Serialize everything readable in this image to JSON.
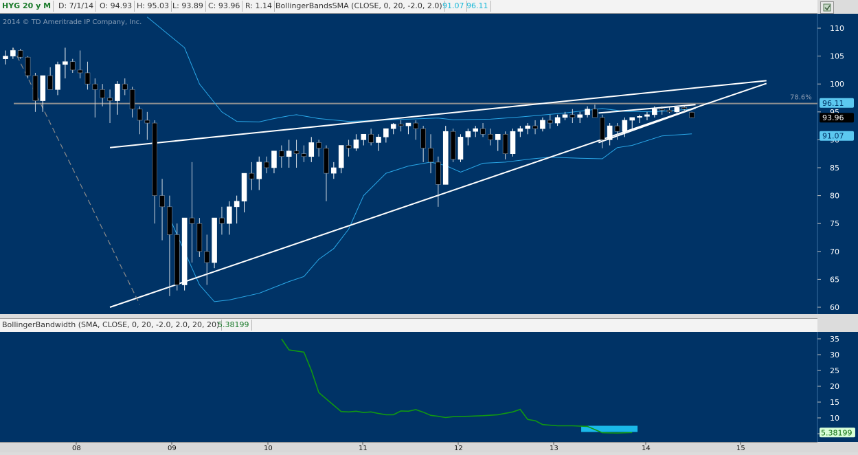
{
  "header": {
    "symbol": "HYG 20 y M",
    "date": "D: 7/1/14",
    "open": "O: 94.93",
    "high": "H: 95.03",
    "low": "L: 93.89",
    "close": "C: 93.96",
    "range": "R: 1.14",
    "study": "BollingerBandsSMA (CLOSE, 0, 20, -2.0, 2.0)",
    "lower_band": "91.07",
    "upper_band": "96.11"
  },
  "copyright": "2014 © TD Ameritrade IP Company, Inc.",
  "subheader": {
    "study": "BollingerBandwidth (SMA, CLOSE, 0, 20, -2.0, 2.0, 20, 20)",
    "value": "5.38199"
  },
  "colors": {
    "background": "#003366",
    "candle_up": "#ffffff",
    "candle_down": "#000000",
    "bands": "#2aa8e8",
    "bandwidth": "#119911",
    "fib": "#909090",
    "trendline": "#ffffff"
  },
  "chart_data": [
    {
      "type": "candlestick",
      "x_axis_labels": [
        "08",
        "09",
        "10",
        "11",
        "12",
        "13",
        "14",
        "15"
      ],
      "ylim": [
        58,
        113
      ],
      "y_ticks": [
        110,
        105,
        100,
        95,
        90,
        85,
        80,
        75,
        70,
        65,
        60
      ],
      "fib_label": "78.6%",
      "fib_level": 96.5,
      "last_price": "93.96",
      "band_upper_label": "96.11",
      "band_lower_label": "91.07",
      "candles": [
        [
          104.5,
          106,
          103.5,
          105
        ],
        [
          105,
          106.5,
          104.5,
          106
        ],
        [
          106,
          106.3,
          104.5,
          104.8
        ],
        [
          104.8,
          105,
          101,
          101.5
        ],
        [
          101.5,
          102,
          95,
          97
        ],
        [
          97,
          101.5,
          95,
          101.5
        ],
        [
          101.5,
          103,
          99,
          99
        ],
        [
          99,
          104,
          98,
          103.5
        ],
        [
          103.5,
          106.5,
          101,
          104
        ],
        [
          104,
          104.5,
          102,
          102.5
        ],
        [
          102.5,
          106,
          101,
          102
        ],
        [
          102,
          104,
          99,
          100
        ],
        [
          100,
          101,
          94,
          99
        ],
        [
          99,
          100,
          96,
          97.5
        ],
        [
          97.5,
          99,
          93,
          97
        ],
        [
          97,
          100.5,
          94.5,
          100
        ],
        [
          100,
          101,
          98,
          99
        ],
        [
          99,
          99.5,
          94,
          95.5
        ],
        [
          95.5,
          96,
          91,
          93.5
        ],
        [
          93.5,
          95,
          90,
          93
        ],
        [
          93,
          93.5,
          75,
          80
        ],
        [
          80,
          83,
          72,
          78
        ],
        [
          78,
          80,
          62,
          73
        ],
        [
          73,
          75,
          63,
          64
        ],
        [
          64,
          76,
          63,
          76
        ],
        [
          76,
          86,
          68,
          75
        ],
        [
          75,
          76,
          69,
          70
        ],
        [
          70,
          73,
          64,
          68
        ],
        [
          68,
          76,
          67,
          76
        ],
        [
          76,
          78,
          73,
          75
        ],
        [
          75,
          79,
          73,
          78
        ],
        [
          78,
          80,
          75,
          79
        ],
        [
          79,
          84,
          77,
          84
        ],
        [
          84,
          86,
          81,
          83
        ],
        [
          83,
          87,
          81,
          86
        ],
        [
          86,
          87,
          84,
          85
        ],
        [
          85,
          88,
          84,
          88
        ],
        [
          88,
          89,
          85,
          87
        ],
        [
          87,
          90,
          85,
          88
        ],
        [
          88,
          90,
          85,
          87.5
        ],
        [
          87.5,
          89,
          86,
          87
        ],
        [
          87,
          90.5,
          86,
          89.5
        ],
        [
          89.5,
          90,
          87,
          88.5
        ],
        [
          88.5,
          89,
          79,
          84
        ],
        [
          84,
          86,
          83,
          85
        ],
        [
          85,
          89,
          84,
          89
        ],
        [
          89,
          90,
          87,
          88.5
        ],
        [
          88.5,
          91,
          88,
          90
        ],
        [
          90,
          91,
          89,
          91
        ],
        [
          91,
          92,
          89,
          89.5
        ],
        [
          89.5,
          91,
          88,
          90.5
        ],
        [
          90.5,
          92,
          89.5,
          92
        ],
        [
          92,
          93,
          91,
          92.8
        ],
        [
          92.8,
          93.5,
          91.5,
          92.5
        ],
        [
          92.5,
          93,
          91,
          93
        ],
        [
          93,
          93.5,
          90,
          92
        ],
        [
          92,
          92.5,
          86,
          88.5
        ],
        [
          88.5,
          91,
          84,
          86
        ],
        [
          86,
          87,
          78,
          82
        ],
        [
          82,
          92.5,
          82,
          91.5
        ],
        [
          91.5,
          92,
          86,
          86.5
        ],
        [
          86.5,
          91,
          86,
          90.5
        ],
        [
          90.5,
          92,
          89,
          91.5
        ],
        [
          91.5,
          92.5,
          90.5,
          92
        ],
        [
          92,
          93,
          90.5,
          91
        ],
        [
          91,
          92,
          89,
          90
        ],
        [
          90,
          91,
          88,
          91
        ],
        [
          91,
          91.5,
          86.5,
          87.5
        ],
        [
          87.5,
          92,
          87,
          91.5
        ],
        [
          91.5,
          92.5,
          90.5,
          92
        ],
        [
          92,
          93,
          91,
          92.5
        ],
        [
          92.5,
          93.5,
          91,
          92
        ],
        [
          92,
          94,
          91.5,
          93.5
        ],
        [
          93.5,
          94.5,
          92,
          93
        ],
        [
          93,
          94.5,
          92.5,
          94
        ],
        [
          94,
          95,
          93.5,
          94.5
        ],
        [
          94.5,
          95.5,
          93,
          94
        ],
        [
          94,
          95,
          93,
          94.5
        ],
        [
          94.5,
          96,
          94,
          95.5
        ],
        [
          95.5,
          96.3,
          94.5,
          94
        ],
        [
          94,
          94.5,
          88.5,
          90
        ],
        [
          90,
          93,
          89,
          92.5
        ],
        [
          92.5,
          93,
          90,
          91.5
        ],
        [
          91.5,
          94,
          90.5,
          93.5
        ],
        [
          93.5,
          94,
          92,
          94
        ],
        [
          94,
          94.5,
          93,
          94.2
        ],
        [
          94.2,
          95,
          93.5,
          94.5
        ],
        [
          94.5,
          96,
          94,
          95.5
        ],
        [
          95.5,
          96,
          94.5,
          95.3
        ],
        [
          95.3,
          95.8,
          94.8,
          95
        ],
        [
          95,
          96,
          94.5,
          95.8
        ],
        [
          95.8,
          96,
          95,
          95.5
        ],
        [
          94.93,
          95.03,
          93.89,
          93.96
        ]
      ],
      "upper_band": [
        [
          0,
          null
        ],
        [
          12,
          null
        ],
        [
          19,
          112
        ],
        [
          24,
          106.5
        ],
        [
          26,
          100
        ],
        [
          29,
          95
        ],
        [
          31,
          93.3
        ],
        [
          34,
          93.2
        ],
        [
          36,
          93.8
        ],
        [
          38,
          94.3
        ],
        [
          39,
          94.5
        ],
        [
          42,
          93.8
        ],
        [
          46,
          93.3
        ],
        [
          50,
          93.5
        ],
        [
          54,
          93.7
        ],
        [
          58,
          93.9
        ],
        [
          60,
          93.6
        ],
        [
          65,
          93.7
        ],
        [
          70,
          94.2
        ],
        [
          75,
          94.8
        ],
        [
          80,
          95.6
        ],
        [
          83,
          95.1
        ],
        [
          87,
          95.0
        ],
        [
          90,
          95.3
        ],
        [
          92,
          95.5
        ]
      ],
      "lower_band": [
        [
          14,
          null
        ],
        [
          22,
          76
        ],
        [
          24,
          70
        ],
        [
          26,
          64
        ],
        [
          28,
          61
        ],
        [
          30,
          61.3
        ],
        [
          34,
          62.5
        ],
        [
          38,
          64.6
        ],
        [
          40,
          65.5
        ],
        [
          42,
          68.6
        ],
        [
          44,
          70.5
        ],
        [
          46,
          74
        ],
        [
          48,
          80
        ],
        [
          51,
          84
        ],
        [
          54,
          85.3
        ],
        [
          57,
          86
        ],
        [
          59,
          85.4
        ],
        [
          61,
          84.2
        ],
        [
          64,
          85.8
        ],
        [
          67,
          86
        ],
        [
          70,
          86.5
        ],
        [
          73,
          86.9
        ],
        [
          77,
          86.7
        ],
        [
          80,
          86.6
        ],
        [
          82,
          88.6
        ],
        [
          84,
          89
        ],
        [
          88,
          90.7
        ],
        [
          92,
          91.07
        ]
      ],
      "trendlines": [
        {
          "from": [
            14,
            88.6
          ],
          "to": [
            102,
            100.6
          ]
        },
        {
          "from": [
            14,
            60
          ],
          "to": [
            102,
            100.1
          ]
        },
        {
          "from": [
            79.5,
            94.8
          ],
          "to": [
            92.5,
            96.3
          ]
        },
        {
          "from": [
            79.5,
            89.5
          ],
          "to": [
            92.5,
            95.7
          ]
        }
      ],
      "dashed_line": {
        "from": [
          1,
          106.5
        ],
        "to": [
          18,
          60.5
        ]
      }
    },
    {
      "type": "line",
      "title": "BollingerBandwidth",
      "ylim": [
        2,
        37
      ],
      "y_ticks": [
        35,
        30,
        25,
        20,
        15,
        10,
        5
      ],
      "last_value": "5.38199",
      "series": [
        [
          37,
          35
        ],
        [
          38,
          31.5
        ],
        [
          40,
          30.8
        ],
        [
          41,
          25
        ],
        [
          42,
          18
        ],
        [
          44,
          14
        ],
        [
          45,
          12
        ],
        [
          46,
          11.9
        ],
        [
          47,
          12.1
        ],
        [
          48,
          11.7
        ],
        [
          49,
          11.9
        ],
        [
          50,
          11.4
        ],
        [
          51,
          11.0
        ],
        [
          52,
          11.0
        ],
        [
          53,
          12.2
        ],
        [
          54,
          12.1
        ],
        [
          55,
          12.6
        ],
        [
          56,
          11.8
        ],
        [
          57,
          10.8
        ],
        [
          58,
          10.5
        ],
        [
          59,
          10.1
        ],
        [
          60,
          10.4
        ],
        [
          62,
          10.5
        ],
        [
          64,
          10.7
        ],
        [
          66,
          11.0
        ],
        [
          68,
          11.9
        ],
        [
          69,
          12.7
        ],
        [
          70,
          9.5
        ],
        [
          71,
          9.1
        ],
        [
          72,
          7.9
        ],
        [
          74,
          7.5
        ],
        [
          76,
          7.5
        ],
        [
          78,
          7.3
        ],
        [
          79,
          6.3
        ],
        [
          80,
          5.3
        ],
        [
          82,
          5.2
        ],
        [
          84,
          5.38
        ]
      ],
      "squeeze_start": 78,
      "squeeze_end": 85
    }
  ]
}
